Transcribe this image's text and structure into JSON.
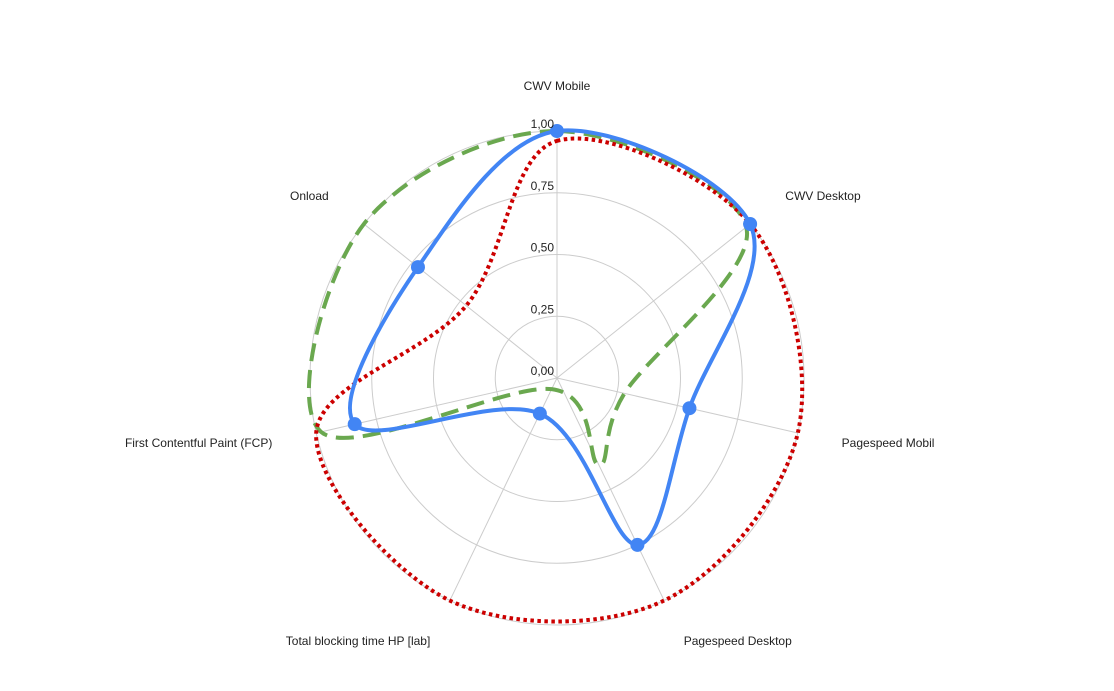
{
  "chart_data": {
    "type": "radar",
    "categories": [
      "CWV Mobile",
      "CWV Desktop",
      "Pagespeed Mobil",
      "Pagespeed Desktop",
      "Total blocking time HP [lab]",
      "First Contentful Paint (FCP)",
      "Onload"
    ],
    "r_ticks": [
      "0,00",
      "0,25",
      "0,50",
      "0,75",
      "1,00"
    ],
    "r_range": [
      0,
      1
    ],
    "grid": true,
    "series": [
      {
        "values": [
          1.0,
          1.0,
          0.55,
          0.75,
          0.16,
          0.84,
          0.72
        ],
        "color": "#4285f4",
        "line_style": "solid",
        "markers": true
      },
      {
        "values": [
          1.0,
          0.98,
          0.28,
          0.39,
          0.05,
          0.98,
          1.0
        ],
        "color": "#6aa84f",
        "line_style": "dashed",
        "markers": false
      },
      {
        "values": [
          0.96,
          1.0,
          1.0,
          1.0,
          1.0,
          1.0,
          0.47
        ],
        "color": "#cc0000",
        "line_style": "dotted",
        "markers": false
      }
    ]
  }
}
